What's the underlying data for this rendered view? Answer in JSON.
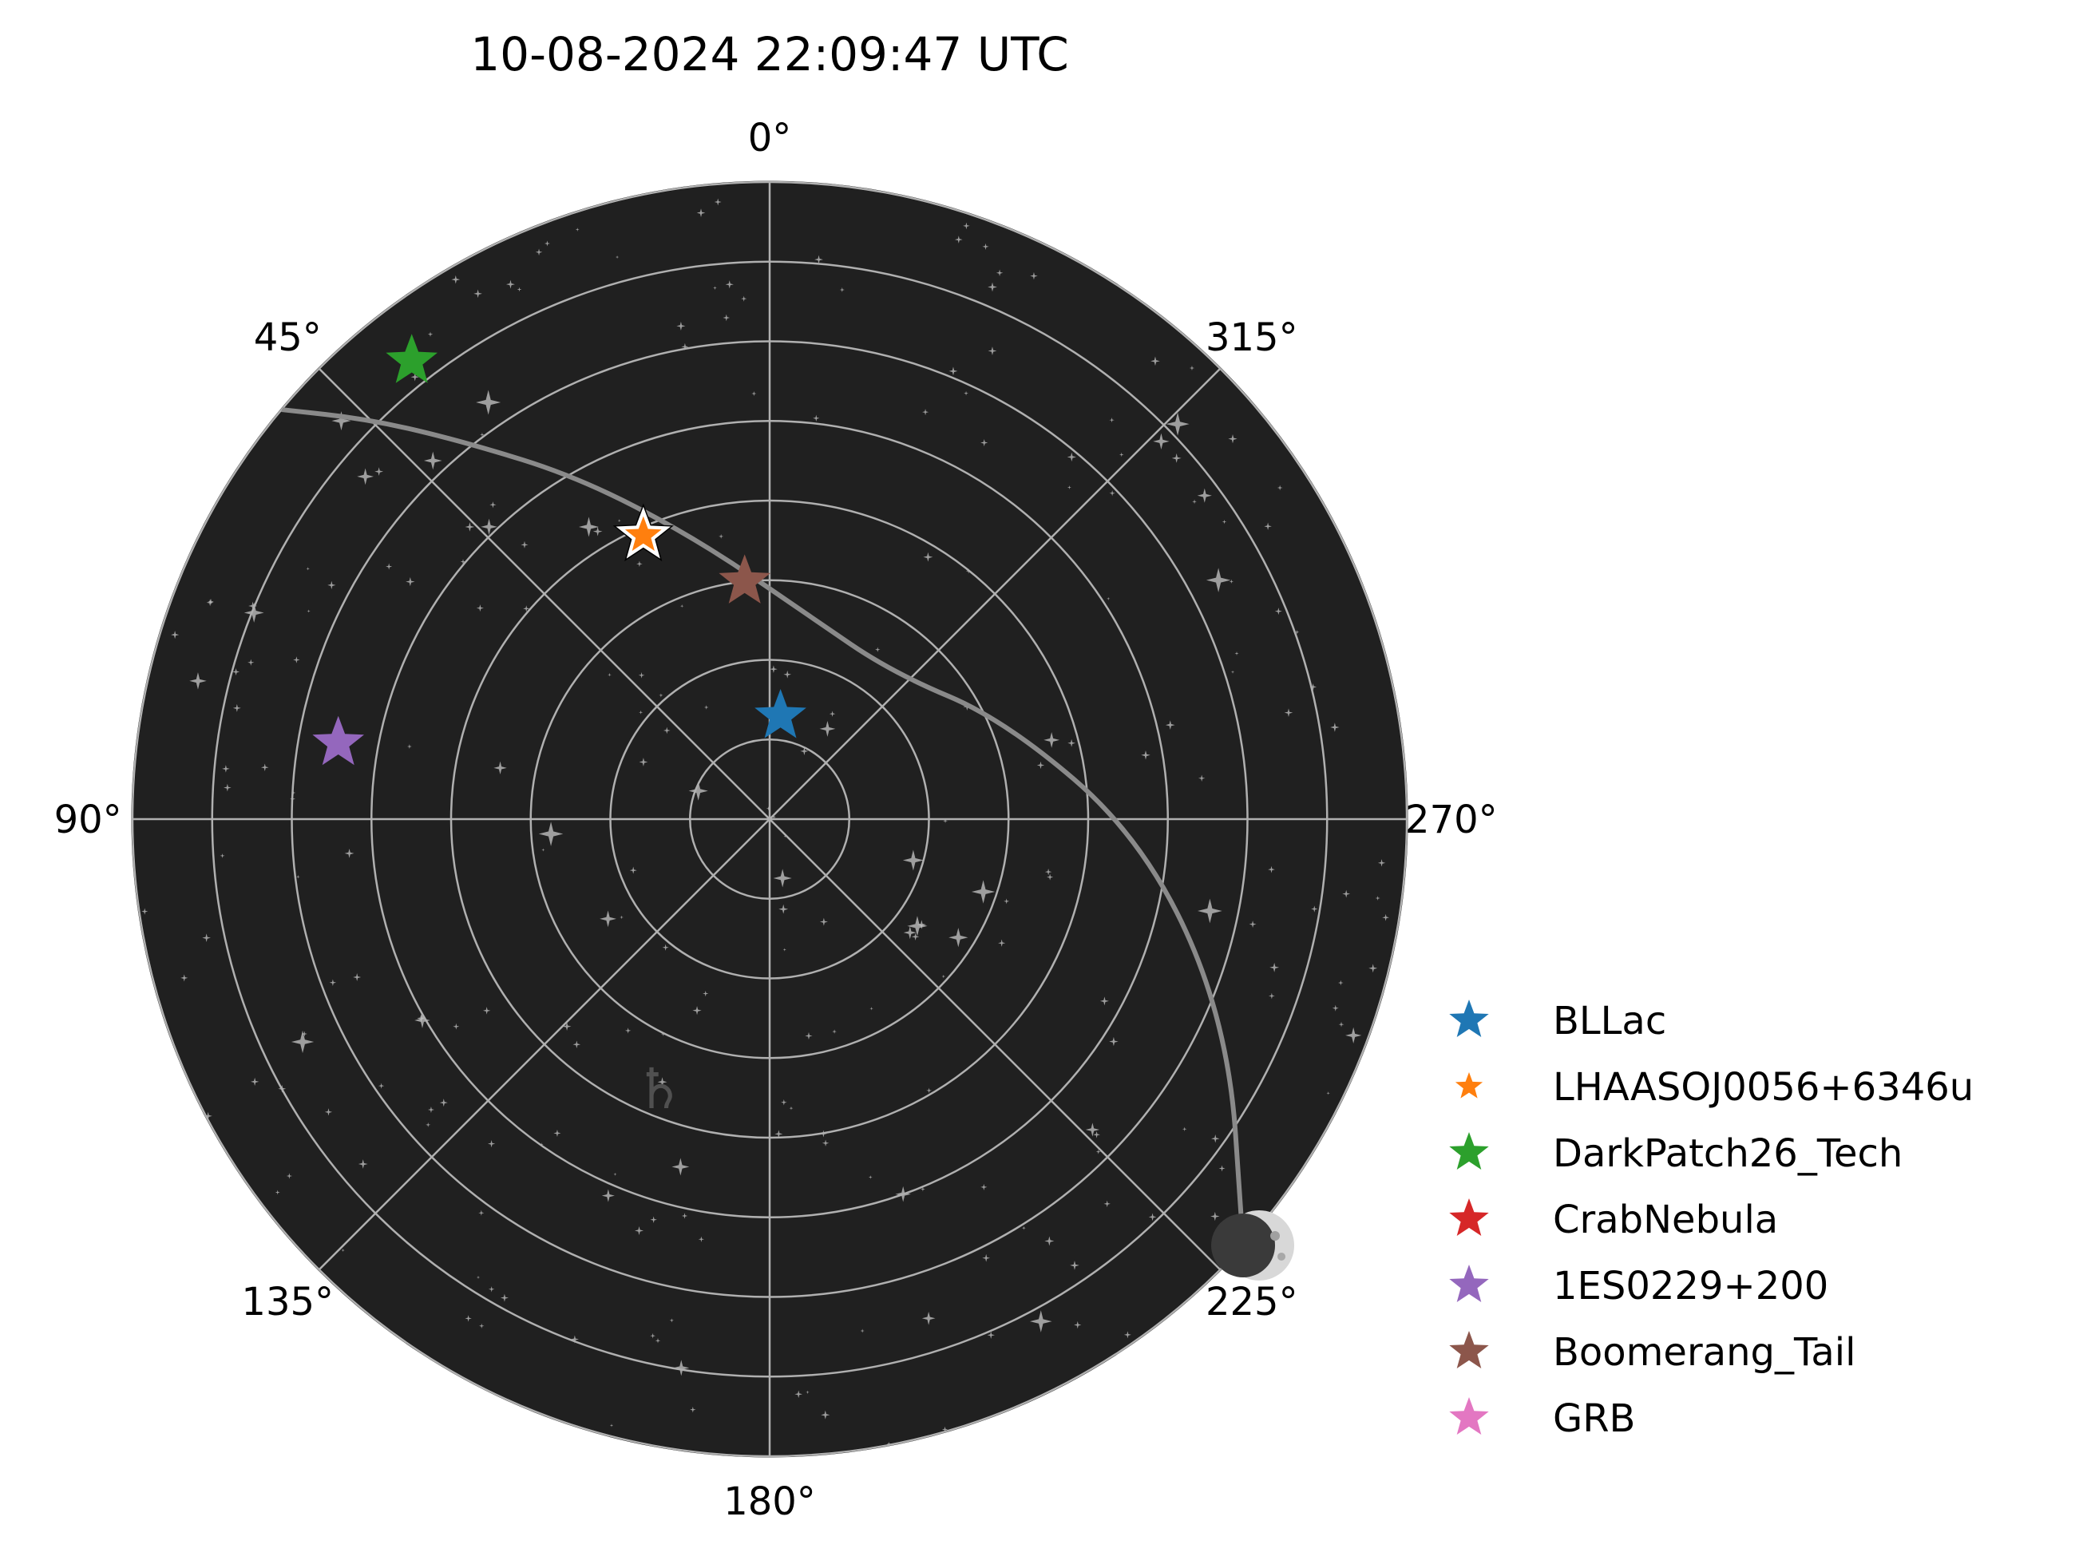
{
  "chart_data": {
    "type": "scatter",
    "projection": "polar sky map (azimuth / zenith distance)",
    "title": "10-08-2024 22:09:47 UTC",
    "azimuth_tick_labels": [
      "0°",
      "45°",
      "90°",
      "135°",
      "180°",
      "225°",
      "270°",
      "315°"
    ],
    "azimuth_ticks_deg": [
      0,
      45,
      90,
      135,
      180,
      225,
      270,
      315
    ],
    "azimuth_direction": "counterclockwise, 0° at top",
    "radial_rings_zenith_deg": [
      10,
      20,
      30,
      40,
      50,
      60,
      70,
      80
    ],
    "radial_max_zenith_deg": 80,
    "grid": true,
    "background_color": "#202020",
    "legend_location": "lower right, outside plot",
    "series": [
      {
        "name": "BLLac",
        "color": "#1f77b4",
        "az": 354,
        "zd": 13,
        "size": "large",
        "visible": true
      },
      {
        "name": "LHAASOJ0056+6346u",
        "color": "#ff7f0e",
        "az": 24,
        "zd": 39,
        "size": "small",
        "visible": true,
        "highlight": true
      },
      {
        "name": "DarkPatch26_Tech",
        "color": "#2ca02c",
        "az": 38,
        "zd": 73,
        "size": "large",
        "visible": true
      },
      {
        "name": "CrabNebula",
        "color": "#d62728",
        "az": 0,
        "zd": 0,
        "size": "large",
        "visible": false
      },
      {
        "name": "1ES0229+200",
        "color": "#9467bd",
        "az": 80,
        "zd": 55,
        "size": "large",
        "visible": true
      },
      {
        "name": "Boomerang_Tail",
        "color": "#8c564b",
        "az": 6,
        "zd": 30,
        "size": "large",
        "visible": true
      },
      {
        "name": "GRB",
        "color": "#e377c2",
        "az": 0,
        "zd": 0,
        "size": "large",
        "visible": false
      }
    ],
    "ecliptic_path": [
      {
        "az": 50,
        "zd": 80
      },
      {
        "az": 45,
        "zd": 71
      },
      {
        "az": 39,
        "zd": 61
      },
      {
        "az": 29,
        "zd": 49
      },
      {
        "az": 14,
        "zd": 36
      },
      {
        "az": 349,
        "zd": 26
      },
      {
        "az": 320,
        "zd": 24
      },
      {
        "az": 293,
        "zd": 32
      },
      {
        "az": 267,
        "zd": 47
      },
      {
        "az": 246,
        "zd": 63
      },
      {
        "az": 228,
        "zd": 80
      }
    ],
    "moon": {
      "az": 228,
      "zd": 80,
      "phase": "crescent",
      "icon": "moon-icon"
    },
    "saturn": {
      "az": 158,
      "zd": 37,
      "symbol": "♄",
      "icon": "saturn-icon"
    }
  }
}
